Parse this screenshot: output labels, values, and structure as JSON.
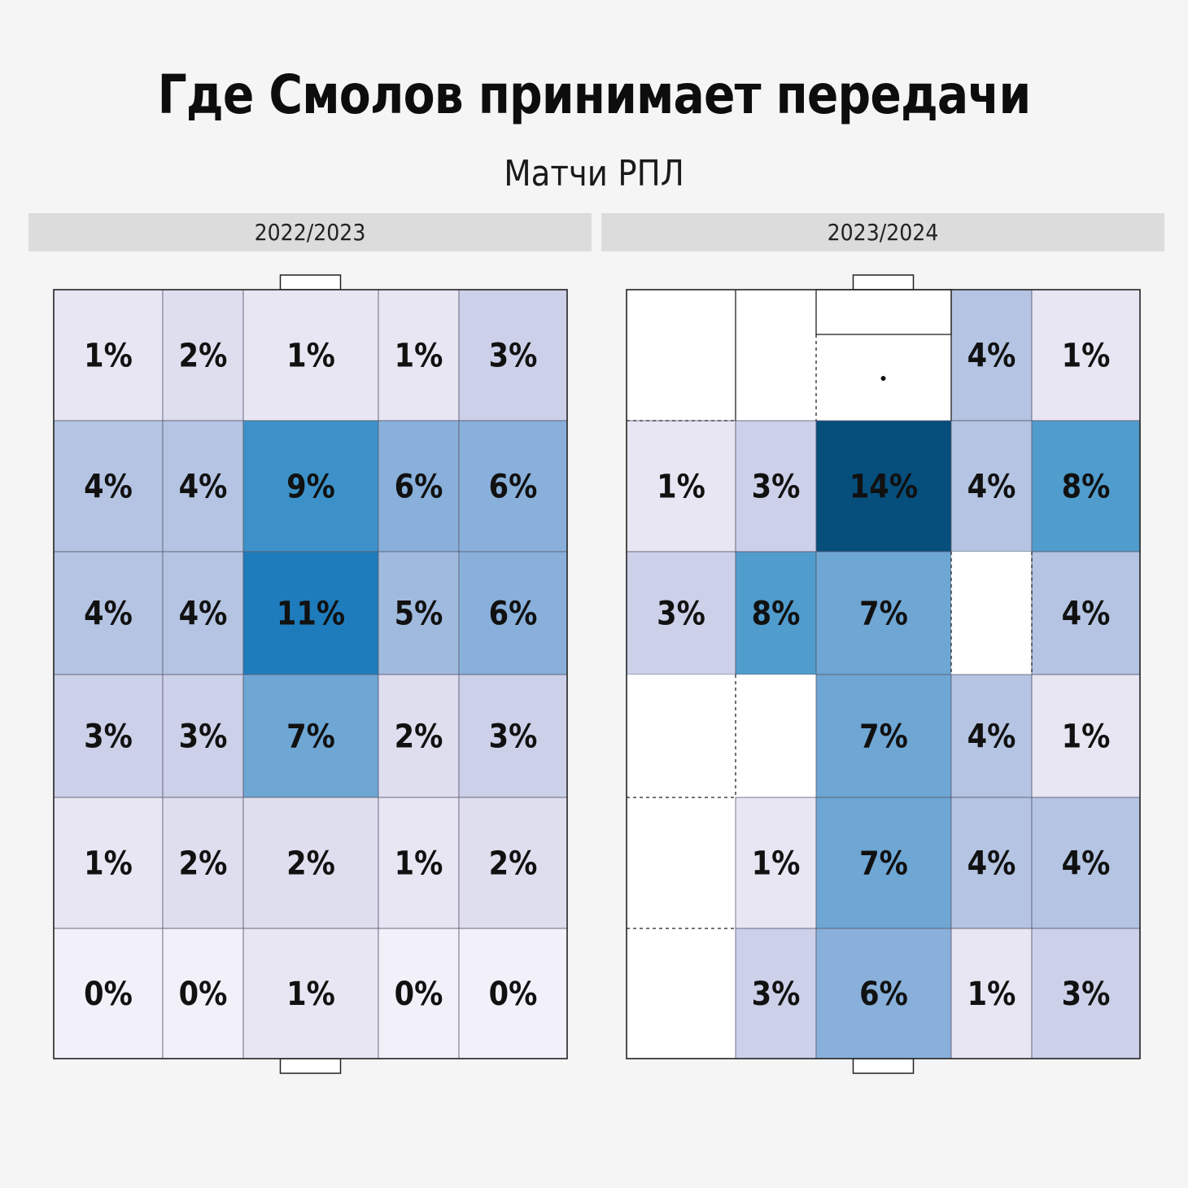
{
  "title": "Где Смолов принимает передачи",
  "subtitle": "Матчи РПЛ",
  "chart_data": [
    {
      "type": "heatmap",
      "panel": "2022/2023",
      "rows": [
        [
          "1%",
          "2%",
          "1%",
          "1%",
          "3%"
        ],
        [
          "4%",
          "4%",
          "9%",
          "6%",
          "6%"
        ],
        [
          "4%",
          "4%",
          "11%",
          "5%",
          "6%"
        ],
        [
          "3%",
          "3%",
          "7%",
          "2%",
          "3%"
        ],
        [
          "1%",
          "2%",
          "2%",
          "1%",
          "2%"
        ],
        [
          "0%",
          "0%",
          "1%",
          "0%",
          "0%"
        ]
      ],
      "values": [
        [
          1,
          2,
          1,
          1,
          3
        ],
        [
          4,
          4,
          9,
          6,
          6
        ],
        [
          4,
          4,
          11,
          5,
          6
        ],
        [
          3,
          3,
          7,
          2,
          3
        ],
        [
          1,
          2,
          2,
          1,
          2
        ],
        [
          0,
          0,
          1,
          0,
          0
        ]
      ]
    },
    {
      "type": "heatmap",
      "panel": "2023/2024",
      "rows": [
        [
          "",
          "",
          "",
          "4%",
          "1%"
        ],
        [
          "1%",
          "3%",
          "14%",
          "4%",
          "8%"
        ],
        [
          "3%",
          "8%",
          "7%",
          "",
          "4%"
        ],
        [
          "",
          "",
          "7%",
          "4%",
          "1%"
        ],
        [
          "",
          "1%",
          "7%",
          "4%",
          "4%"
        ],
        [
          "",
          "3%",
          "6%",
          "1%",
          "3%"
        ]
      ],
      "values": [
        [
          null,
          null,
          null,
          4,
          1
        ],
        [
          1,
          3,
          14,
          4,
          8
        ],
        [
          3,
          8,
          7,
          null,
          4
        ],
        [
          null,
          null,
          7,
          4,
          1
        ],
        [
          null,
          1,
          7,
          4,
          4
        ],
        [
          null,
          3,
          6,
          1,
          3
        ]
      ]
    }
  ]
}
